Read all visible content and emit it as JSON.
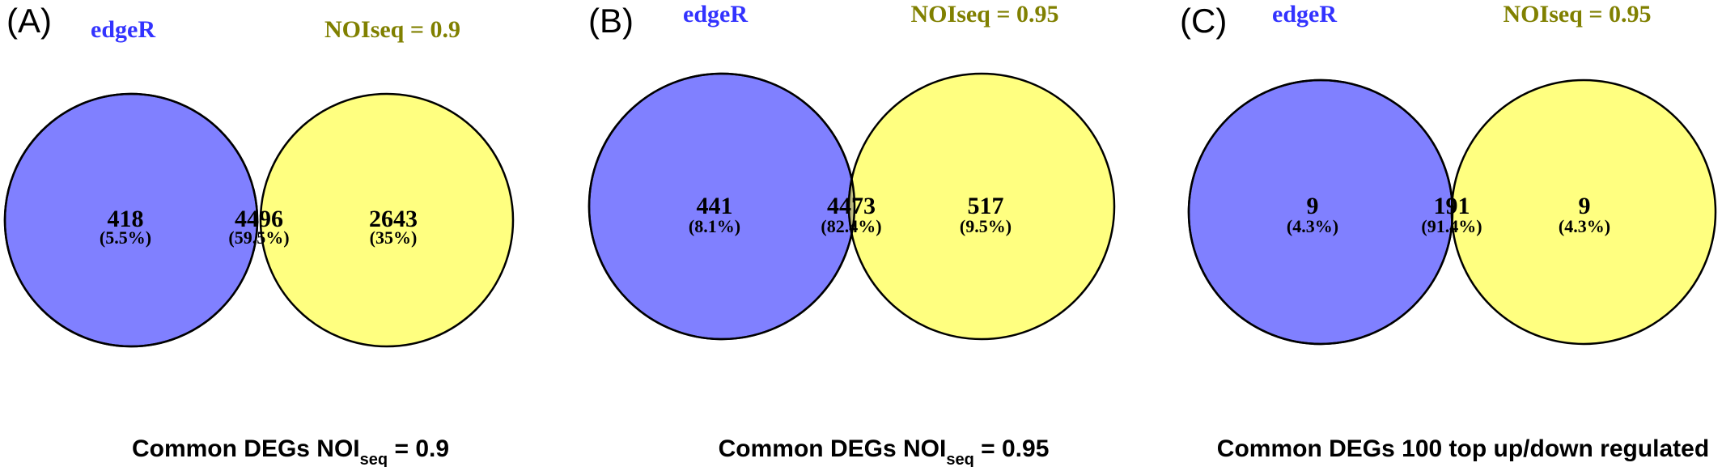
{
  "colors": {
    "set_a_fill": "#8080ff",
    "set_b_fill": "#ffff80",
    "overlap_fill": "#bdbb7f",
    "set_a_label": "#3333ff",
    "set_b_label": "#808000",
    "outline": "#000000"
  },
  "panels": [
    {
      "letter": "(A)",
      "set_a_label": "edgeR",
      "set_b_label": "NOIseq = 0.9",
      "only_a": {
        "count": "418",
        "percent": "(5.5%)"
      },
      "both": {
        "count": "4496",
        "percent": "(59.5%)"
      },
      "only_b": {
        "count": "2643",
        "percent": "(35%)"
      },
      "caption_main": "Common DEGs NOI",
      "caption_sub": "seq",
      "caption_tail": " = 0.9"
    },
    {
      "letter": "(B)",
      "set_a_label": "edgeR",
      "set_b_label": "NOIseq = 0.95",
      "only_a": {
        "count": "441",
        "percent": "(8.1%)"
      },
      "both": {
        "count": "4473",
        "percent": "(82.4%)"
      },
      "only_b": {
        "count": "517",
        "percent": "(9.5%)"
      },
      "caption_main": "Common DEGs NOI",
      "caption_sub": "seq",
      "caption_tail": " = 0.95"
    },
    {
      "letter": "(C)",
      "set_a_label": "edgeR",
      "set_b_label": "NOIseq = 0.95",
      "only_a": {
        "count": "9",
        "percent": "(4.3%)"
      },
      "both": {
        "count": "191",
        "percent": "(91.4%)"
      },
      "only_b": {
        "count": "9",
        "percent": "(4.3%)"
      },
      "caption_main": "Common DEGs 100 top up/down regulated",
      "caption_sub": "",
      "caption_tail": ""
    }
  ]
}
